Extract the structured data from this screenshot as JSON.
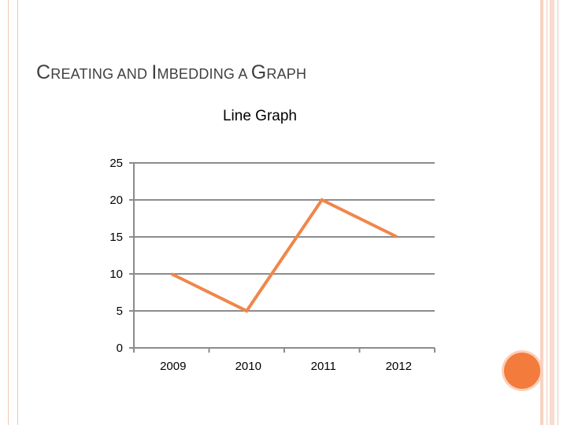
{
  "slide": {
    "title_parts": [
      {
        "text": "C",
        "size": "cap"
      },
      {
        "text": "REATING AND ",
        "size": "small"
      },
      {
        "text": "I",
        "size": "cap"
      },
      {
        "text": "MBEDDING A ",
        "size": "small"
      },
      {
        "text": "G",
        "size": "cap"
      },
      {
        "text": "RAPH",
        "size": "small"
      }
    ],
    "accent_color": "#f37b3b"
  },
  "chart_data": {
    "type": "line",
    "title": "Line Graph",
    "categories": [
      "2009",
      "2010",
      "2011",
      "2012"
    ],
    "series": [
      {
        "values": [
          10,
          5,
          20,
          15
        ],
        "color": "#f0864a"
      }
    ],
    "ylim": [
      0,
      25
    ],
    "yticks": [
      0,
      5,
      10,
      15,
      20,
      25
    ],
    "grid": true,
    "legend": "none"
  }
}
